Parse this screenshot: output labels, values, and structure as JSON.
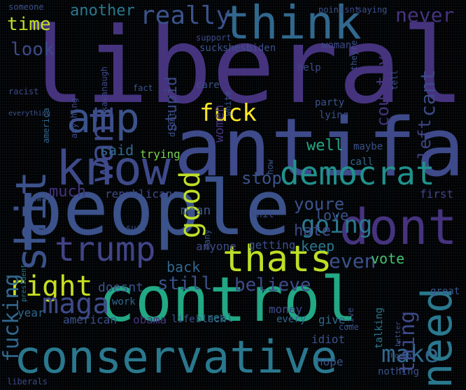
{
  "palette": {
    "background": "#000000",
    "dark_purple": "#46337e",
    "purple": "#433e85",
    "indigo": "#3e4a89",
    "blue": "#365d8d",
    "steel": "#31688e",
    "teal": "#2a788e",
    "teal_green": "#21918c",
    "green": "#22a884",
    "light_green": "#44bf70",
    "lime": "#7ad151",
    "yellow_green": "#bddf26",
    "yellow": "#fde725"
  },
  "words": [
    {
      "text": "liberal",
      "color": "#46337e"
    },
    {
      "text": "antifa",
      "color": "#3e4a89"
    },
    {
      "text": "people",
      "color": "#3b528b"
    },
    {
      "text": "control",
      "color": "#22a884"
    },
    {
      "text": "conservative",
      "color": "#2a788e"
    },
    {
      "text": "think",
      "color": "#31688e"
    },
    {
      "text": "know",
      "color": "#3e4a89"
    },
    {
      "text": "dont",
      "color": "#46337e"
    },
    {
      "text": "amp",
      "color": "#3b528b"
    },
    {
      "text": "shit",
      "color": "#3b528b"
    },
    {
      "text": "democrat",
      "color": "#21918c"
    },
    {
      "text": "trump",
      "color": "#414487"
    },
    {
      "text": "thats",
      "color": "#bddf26"
    },
    {
      "text": "need",
      "color": "#2a788e"
    },
    {
      "text": "right",
      "color": "#c8e020"
    },
    {
      "text": "make",
      "color": "#31688e"
    },
    {
      "text": "maga",
      "color": "#3e4a89"
    },
    {
      "text": "want",
      "color": "#3e4a89"
    },
    {
      "text": "good",
      "color": "#bddf26"
    },
    {
      "text": "really",
      "color": "#3b528b"
    },
    {
      "text": "fuck",
      "color": "#fde725"
    },
    {
      "text": "going",
      "color": "#2a788e"
    },
    {
      "text": "stop",
      "color": "#3b528b"
    },
    {
      "text": "youre",
      "color": "#3b528b"
    },
    {
      "text": "fucking",
      "color": "#31688e"
    },
    {
      "text": "even",
      "color": "#3b528b"
    },
    {
      "text": "still",
      "color": "#3b528b"
    },
    {
      "text": "believe",
      "color": "#3e4a89"
    },
    {
      "text": "thing",
      "color": "#3e4a89"
    },
    {
      "text": "time",
      "color": "#bddf26"
    },
    {
      "text": "look",
      "color": "#3e4a89"
    },
    {
      "text": "another",
      "color": "#2a788e"
    },
    {
      "text": "never",
      "color": "#46337e"
    },
    {
      "text": "cant",
      "color": "#3e4a89"
    },
    {
      "text": "left",
      "color": "#414487"
    },
    {
      "text": "country",
      "color": "#46337e"
    },
    {
      "text": "hate",
      "color": "#3e4a89"
    },
    {
      "text": "love",
      "color": "#3b528b"
    },
    {
      "text": "keep",
      "color": "#2a788e"
    },
    {
      "text": "well",
      "color": "#22a884"
    },
    {
      "text": "said",
      "color": "#31688e"
    },
    {
      "text": "much",
      "color": "#46337e"
    },
    {
      "text": "back",
      "color": "#31688e"
    },
    {
      "text": "doesnt",
      "color": "#3b528b"
    },
    {
      "text": "year",
      "color": "#31688e"
    },
    {
      "text": "american",
      "color": "#3b528b"
    },
    {
      "text": "stupid",
      "color": "#3e4a89"
    },
    {
      "text": "women",
      "color": "#46337e"
    },
    {
      "text": "trying",
      "color": "#7ad151"
    },
    {
      "text": "mean",
      "color": "#3b528b"
    },
    {
      "text": "republicans",
      "color": "#3e4a89"
    },
    {
      "text": "vote",
      "color": "#44bf70"
    },
    {
      "text": "getting",
      "color": "#3b528b"
    },
    {
      "text": "anyone",
      "color": "#3e4a89"
    },
    {
      "text": "talking",
      "color": "#2a788e"
    },
    {
      "text": "money",
      "color": "#3e4a89"
    },
    {
      "text": "every",
      "color": "#31688e"
    },
    {
      "text": "give",
      "color": "#31688e"
    },
    {
      "text": "hope",
      "color": "#3b528b"
    },
    {
      "text": "nothing",
      "color": "#3b528b"
    },
    {
      "text": "idiot",
      "color": "#3b528b"
    },
    {
      "text": "real",
      "color": "#2a788e"
    },
    {
      "text": "obama",
      "color": "#46337e"
    },
    {
      "text": "life",
      "color": "#3b528b"
    },
    {
      "text": "black",
      "color": "#31688e"
    },
    {
      "text": "liberals",
      "color": "#3e4a89"
    },
    {
      "text": "work",
      "color": "#31688e"
    },
    {
      "text": "first",
      "color": "#414487"
    },
    {
      "text": "maybe",
      "color": "#3b528b"
    },
    {
      "text": "call",
      "color": "#31688e"
    },
    {
      "text": "party",
      "color": "#3b528b"
    },
    {
      "text": "lying",
      "color": "#3b528b"
    },
    {
      "text": "great",
      "color": "#3b528b"
    },
    {
      "text": "help",
      "color": "#3e4a89"
    },
    {
      "text": "care",
      "color": "#3b528b"
    },
    {
      "text": "suck",
      "color": "#3b528b"
    },
    {
      "text": "shes",
      "color": "#3b528b"
    },
    {
      "text": "biden",
      "color": "#3b528b"
    },
    {
      "text": "woman",
      "color": "#3e4a89"
    },
    {
      "text": "support",
      "color": "#3e4a89"
    },
    {
      "text": "point",
      "color": "#3b528b"
    },
    {
      "text": "isnt",
      "color": "#3e4a89"
    },
    {
      "text": "saying",
      "color": "#3b528b"
    },
    {
      "text": "someone",
      "color": "#3b528b"
    },
    {
      "text": "racist",
      "color": "#3e4a89"
    },
    {
      "text": "kavanaugh",
      "color": "#3e4a89"
    },
    {
      "text": "america",
      "color": "#31688e"
    },
    {
      "text": "didnt",
      "color": "#3b528b"
    },
    {
      "text": "away",
      "color": "#3b528b"
    },
    {
      "text": "president",
      "color": "#2a788e"
    },
    {
      "text": "white",
      "color": "#3b528b"
    },
    {
      "text": "thought",
      "color": "#3b528b"
    },
    {
      "text": "come",
      "color": "#3b528b"
    },
    {
      "text": "better",
      "color": "#3b528b"
    },
    {
      "text": "tell",
      "color": "#3b528b"
    },
    {
      "text": "anything",
      "color": "#3e4a89"
    },
    {
      "text": "live",
      "color": "#3b528b"
    },
    {
      "text": "many",
      "color": "#3b528b"
    },
    {
      "text": "sure",
      "color": "#3b528b"
    },
    {
      "text": "shit'",
      "color": "#3e4a89"
    },
    {
      "text": "theyre",
      "color": "#3b528b"
    },
    {
      "text": "fact",
      "color": "#3b528b"
    },
    {
      "text": "everything",
      "color": "#3b528b"
    },
    {
      "text": "how",
      "color": "#3b528b"
    }
  ]
}
